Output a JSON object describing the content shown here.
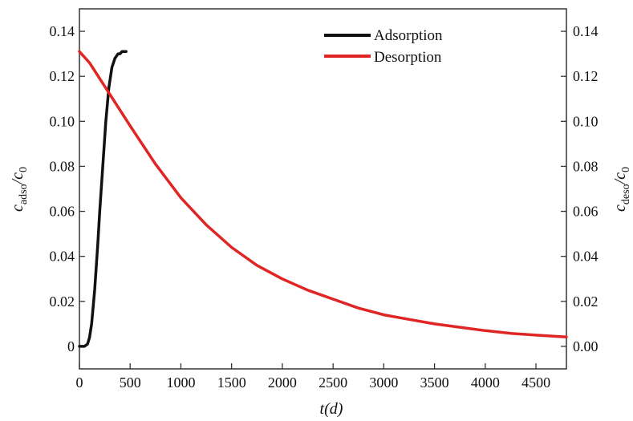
{
  "chart_data": {
    "type": "line",
    "xlabel": "t(d)",
    "ylabel_left": {
      "base": "c",
      "sub": "adso",
      "rest": "/c",
      "sub2": "0"
    },
    "ylabel_right": {
      "base": "c",
      "sub": "deso",
      "rest": "/c",
      "sub2": "0"
    },
    "xlim": [
      0,
      4800
    ],
    "ylim": [
      -0.01,
      0.15
    ],
    "x_ticks": [
      0,
      500,
      1000,
      1500,
      2000,
      2500,
      3000,
      3500,
      4000,
      4500
    ],
    "x_tick_labels": [
      "0",
      "500",
      "1000",
      "1500",
      "2000",
      "2500",
      "3000",
      "3500",
      "4000",
      "4500"
    ],
    "y_ticks": [
      0,
      0.02,
      0.04,
      0.06,
      0.08,
      0.1,
      0.12,
      0.14
    ],
    "y_left_tick_labels": [
      "0",
      "0.02",
      "0.04",
      "0.06",
      "0.08",
      "0.10",
      "0.12",
      "0.14"
    ],
    "y_right_tick_labels": [
      "0.00",
      "0.02",
      "0.04",
      "0.06",
      "0.08",
      "0.10",
      "0.12",
      "0.14"
    ],
    "legend_position": "top-center",
    "series": [
      {
        "name": "Adsorption",
        "color": "#111111",
        "x": [
          0,
          50,
          80,
          100,
          120,
          150,
          180,
          200,
          230,
          260,
          290,
          320,
          350,
          380,
          400,
          420,
          440,
          460
        ],
        "y": [
          0,
          0,
          0.001,
          0.004,
          0.01,
          0.025,
          0.045,
          0.06,
          0.08,
          0.1,
          0.115,
          0.124,
          0.128,
          0.13,
          0.13,
          0.131,
          0.131,
          0.131
        ]
      },
      {
        "name": "Desorption",
        "color": "#e02525",
        "x": [
          0,
          100,
          200,
          300,
          400,
          500,
          750,
          1000,
          1250,
          1500,
          1750,
          2000,
          2250,
          2500,
          2750,
          3000,
          3250,
          3500,
          3750,
          4000,
          4250,
          4500,
          4800
        ],
        "y": [
          0.131,
          0.126,
          0.119,
          0.112,
          0.105,
          0.098,
          0.081,
          0.066,
          0.054,
          0.044,
          0.036,
          0.03,
          0.025,
          0.021,
          0.017,
          0.014,
          0.012,
          0.01,
          0.0085,
          0.007,
          0.0058,
          0.005,
          0.0042
        ]
      }
    ]
  }
}
